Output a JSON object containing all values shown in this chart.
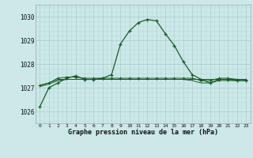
{
  "title": "Graphe pression niveau de la mer (hPa)",
  "bg_color": "#cce8e8",
  "grid_color_major": "#aacccc",
  "grid_color_minor": "#bbdddd",
  "line_color": "#1a5c2a",
  "xlim": [
    -0.5,
    23.5
  ],
  "ylim": [
    1025.5,
    1030.5
  ],
  "yticks": [
    1026,
    1027,
    1028,
    1029,
    1030
  ],
  "xticks": [
    0,
    1,
    2,
    3,
    4,
    5,
    6,
    7,
    8,
    9,
    10,
    11,
    12,
    13,
    14,
    15,
    16,
    17,
    18,
    19,
    20,
    21,
    22,
    23
  ],
  "series1": [
    1026.2,
    1027.0,
    1027.2,
    1027.4,
    1027.5,
    1027.35,
    1027.35,
    1027.4,
    1027.55,
    1028.85,
    1029.4,
    1029.75,
    1029.88,
    1029.82,
    1029.28,
    1028.78,
    1028.1,
    1027.55,
    1027.35,
    1027.2,
    1027.35,
    1027.35,
    1027.3,
    1027.3
  ],
  "series2": [
    1027.1,
    1027.2,
    1027.35,
    1027.35,
    1027.35,
    1027.35,
    1027.35,
    1027.35,
    1027.35,
    1027.35,
    1027.35,
    1027.35,
    1027.35,
    1027.35,
    1027.35,
    1027.35,
    1027.35,
    1027.35,
    1027.35,
    1027.35,
    1027.35,
    1027.35,
    1027.35,
    1027.35
  ],
  "series3": [
    1027.1,
    1027.2,
    1027.4,
    1027.45,
    1027.45,
    1027.4,
    1027.4,
    1027.4,
    1027.4,
    1027.4,
    1027.4,
    1027.4,
    1027.4,
    1027.4,
    1027.4,
    1027.4,
    1027.4,
    1027.4,
    1027.3,
    1027.3,
    1027.4,
    1027.4,
    1027.35,
    1027.35
  ],
  "series4": [
    1027.05,
    1027.15,
    1027.3,
    1027.35,
    1027.35,
    1027.35,
    1027.35,
    1027.35,
    1027.35,
    1027.35,
    1027.35,
    1027.35,
    1027.35,
    1027.35,
    1027.35,
    1027.35,
    1027.35,
    1027.3,
    1027.2,
    1027.2,
    1027.3,
    1027.3,
    1027.3,
    1027.3
  ]
}
